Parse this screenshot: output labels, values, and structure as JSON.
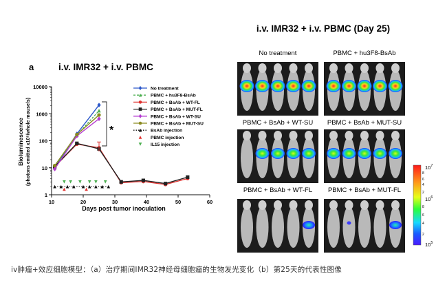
{
  "chart_data": {
    "type": "line",
    "panel_label": "a",
    "title": "i.v. IMR32 + i.v. PBMC",
    "xlabel": "Days post tumor inoculation",
    "ylabel_line1": "Bioluminescence",
    "ylabel_line2": "(photons emitted x10⁵/whole mouse/s)",
    "xlim": [
      10,
      60
    ],
    "ylim": [
      1,
      10000
    ],
    "yscale": "log",
    "xticks": [
      "10",
      "20",
      "30",
      "40",
      "50",
      "60"
    ],
    "yticks": [
      "1",
      "10",
      "100",
      "1000",
      "10000"
    ],
    "significance_label": "*",
    "series": [
      {
        "name": "No treatment",
        "color": "#2b57c9",
        "marker": "diamond",
        "x": [
          11,
          18,
          25
        ],
        "y": [
          10,
          180,
          2100
        ]
      },
      {
        "name": "PBMC + hu3F8-BsAb",
        "color": "#4caf50",
        "marker": "triangle",
        "dashed": true,
        "x": [
          11,
          18,
          25
        ],
        "y": [
          10,
          160,
          1300
        ]
      },
      {
        "name": "PBMC + BsAb + WT-FL",
        "color": "#e0312f",
        "marker": "circle",
        "x": [
          11,
          18,
          25,
          32,
          39,
          46,
          53
        ],
        "y": [
          11,
          75,
          55,
          2.8,
          3.1,
          2.4,
          4.0
        ]
      },
      {
        "name": "PBMC + BsAb + MUT-FL",
        "color": "#222222",
        "marker": "square",
        "x": [
          11,
          18,
          25,
          32,
          39,
          46,
          53
        ],
        "y": [
          11,
          80,
          50,
          3.0,
          3.4,
          2.6,
          4.5
        ]
      },
      {
        "name": "PBMC + BsAb + WT-SU",
        "color": "#b43ad1",
        "marker": "diamond",
        "x": [
          11,
          18,
          25
        ],
        "y": [
          9,
          150,
          650
        ]
      },
      {
        "name": "PBMC + BsAb + MUT-SU",
        "color": "#8a8a1e",
        "marker": "circle",
        "x": [
          11,
          18,
          25
        ],
        "y": [
          12,
          170,
          900
        ]
      }
    ],
    "event_series": [
      {
        "name": "BsAb injection",
        "color": "#111111",
        "marker": "triangle-up",
        "line": "dotted",
        "x": [
          11,
          13,
          15,
          17,
          20,
          22,
          24,
          26,
          28
        ],
        "y": [
          2,
          2,
          2,
          2,
          2,
          2,
          2,
          2,
          2
        ]
      },
      {
        "name": "PBMC injection",
        "color": "#e0312f",
        "marker": "triangle-up",
        "x": [
          14,
          21
        ],
        "y": [
          1.6,
          1.6
        ]
      },
      {
        "name": "IL15 injection",
        "color": "#4caf50",
        "marker": "triangle-down",
        "x": [
          14,
          16,
          19,
          22,
          24,
          27
        ],
        "y": [
          3,
          3,
          3,
          3,
          3,
          3
        ]
      }
    ]
  },
  "panel_b": {
    "title": "i.v. IMR32 + i.v. PBMC (Day 25)",
    "images": [
      {
        "label": "No treatment",
        "signal": "high"
      },
      {
        "label": "PBMC + hu3F8-BsAb",
        "signal": "high"
      },
      {
        "label": "PBMC + BsAb + WT-SU",
        "signal": "medium"
      },
      {
        "label": "PBMC + BsAb + MUT-SU",
        "signal": "medium"
      },
      {
        "label": "PBMC + BsAb + WT-FL",
        "signal": "single"
      },
      {
        "label": "PBMC + BsAb + MUT-FL",
        "signal": "single"
      }
    ],
    "colorbar": {
      "top_label": "10",
      "top_exp": "7",
      "mid_label": "10",
      "mid_exp": "6",
      "bottom_label": "10",
      "bottom_exp": "5",
      "minor_ticks": [
        "8",
        "6",
        "4",
        "2",
        "8",
        "6",
        "4",
        "2"
      ]
    }
  },
  "caption": "iv肿瘤+效应细胞模型：（a）治疗期间IMR32神经母细胞瘤的生物发光变化（b）第25天的代表性图像"
}
